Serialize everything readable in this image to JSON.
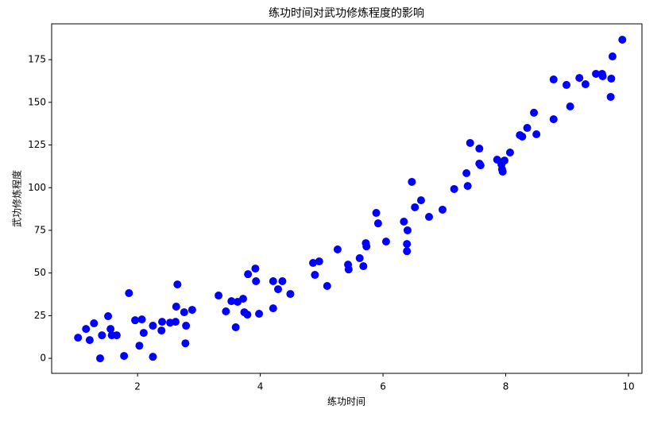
{
  "chart_data": {
    "type": "scatter",
    "title": "练功时间对武功修炼程度的影响",
    "xlabel": "练功时间",
    "ylabel": "武功修炼程度",
    "color": "#0000ff",
    "x": [
      1.03,
      1.16,
      1.22,
      1.29,
      1.39,
      1.42,
      1.52,
      1.56,
      1.58,
      1.66,
      1.78,
      1.86,
      1.96,
      2.03,
      2.07,
      2.1,
      2.25,
      2.25,
      2.39,
      2.4,
      2.53,
      2.62,
      2.63,
      2.65,
      2.76,
      2.78,
      2.79,
      2.89,
      3.32,
      3.44,
      3.53,
      3.6,
      3.63,
      3.72,
      3.74,
      3.79,
      3.8,
      3.92,
      3.93,
      3.98,
      4.21,
      4.21,
      4.29,
      4.36,
      4.49,
      4.86,
      4.89,
      4.96,
      5.09,
      5.26,
      5.43,
      5.44,
      5.62,
      5.68,
      5.72,
      5.73,
      5.89,
      5.92,
      6.05,
      6.34,
      6.39,
      6.4,
      6.39,
      6.47,
      6.52,
      6.62,
      6.75,
      6.97,
      7.16,
      7.36,
      7.38,
      7.42,
      7.57,
      7.57,
      7.59,
      7.86,
      7.93,
      7.94,
      7.95,
      7.98,
      8.07,
      8.23,
      8.27,
      8.35,
      8.46,
      8.5,
      8.78,
      8.78,
      8.99,
      9.05,
      9.2,
      9.3,
      9.47,
      9.57,
      9.58,
      9.71,
      9.72,
      9.74,
      9.9
    ],
    "values": [
      12.1,
      17.2,
      10.7,
      20.5,
      0,
      13.5,
      24.7,
      17.2,
      13.5,
      13.5,
      1.4,
      38.2,
      22.3,
      7.4,
      22.8,
      14.9,
      0.9,
      19.1,
      16.3,
      21.4,
      20.9,
      21.4,
      30.3,
      43.3,
      27.0,
      8.8,
      19.1,
      28.4,
      36.8,
      27.5,
      33.5,
      18.2,
      33.1,
      34.9,
      27.0,
      25.6,
      49.3,
      52.6,
      45.2,
      26.1,
      45.2,
      29.3,
      40.5,
      45.2,
      37.7,
      55.9,
      48.9,
      56.8,
      42.4,
      63.8,
      54.9,
      52.1,
      58.7,
      54.0,
      67.5,
      65.6,
      85.2,
      79.1,
      68.4,
      80.1,
      67.0,
      75.0,
      62.8,
      103.4,
      88.5,
      92.6,
      82.9,
      87.1,
      99.2,
      108.5,
      101.0,
      126.2,
      122.9,
      114.1,
      113.1,
      116.4,
      113.6,
      110.8,
      109.4,
      115.9,
      120.6,
      130.8,
      129.9,
      135.0,
      143.9,
      131.3,
      140.1,
      163.4,
      160.2,
      147.6,
      164.3,
      160.6,
      166.7,
      166.7,
      165.3,
      153.2,
      163.9,
      176.9,
      186.7
    ],
    "xlim": [
      0.6,
      10.22
    ],
    "ylim": [
      -8.8,
      196
    ],
    "xticks": [
      2,
      4,
      6,
      8,
      10
    ],
    "yticks": [
      0,
      25,
      50,
      75,
      100,
      125,
      150,
      175
    ],
    "grid": false
  }
}
